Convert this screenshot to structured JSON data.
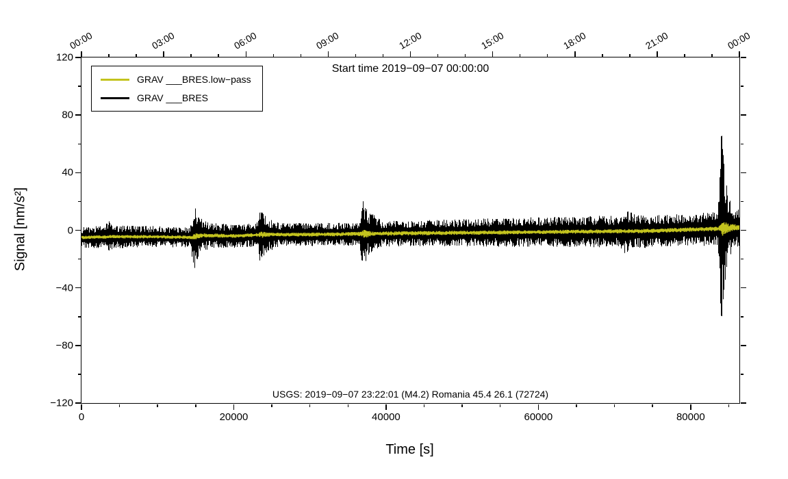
{
  "chart_data": {
    "type": "line",
    "title": "Start time 2019−09−07 00:00:00",
    "xlabel": "Time [s]",
    "ylabel": "Signal [nm/s²]",
    "annotation": "USGS: 2019−09−07 23:22:01 (M4.2) Romania 45.4 26.1 (72724)",
    "xlim": [
      0,
      86400
    ],
    "ylim": [
      -120,
      120
    ],
    "grid": false,
    "legend_position": "top-left",
    "axes": {
      "y_major": [
        -120,
        -80,
        -40,
        0,
        40,
        80,
        120
      ],
      "y_major_labels": [
        "−120",
        "−80",
        "−40",
        "0",
        "40",
        "80",
        "120"
      ],
      "y_minor_step": 20,
      "x_major": [
        0,
        20000,
        40000,
        60000,
        80000
      ],
      "x_major_labels": [
        "0",
        "20000",
        "40000",
        "60000",
        "80000"
      ],
      "x_minor_step": 5000,
      "top_major": [
        0,
        10800,
        21600,
        32400,
        43200,
        54000,
        64800,
        75600,
        86400
      ],
      "top_major_labels": [
        "00:00",
        "03:00",
        "06:00",
        "09:00",
        "12:00",
        "15:00",
        "18:00",
        "21:00",
        "00:00"
      ],
      "top_minor_step": 3600
    },
    "legend": [
      {
        "label": "GRAV ___BRES.low−pass",
        "color": "#c3c31e"
      },
      {
        "label": "GRAV ___BRES",
        "color": "#000000"
      }
    ],
    "series": [
      {
        "name": "GRAV ___BRES",
        "color": "#000000",
        "style": "noise-band",
        "envelope": [
          [
            0,
            7
          ],
          [
            3000,
            8
          ],
          [
            3600,
            11
          ],
          [
            4300,
            8
          ],
          [
            14200,
            7
          ],
          [
            14800,
            23
          ],
          [
            15400,
            14
          ],
          [
            16800,
            9
          ],
          [
            23000,
            8
          ],
          [
            23500,
            21
          ],
          [
            24200,
            13
          ],
          [
            26000,
            8
          ],
          [
            36400,
            8
          ],
          [
            36900,
            26
          ],
          [
            37600,
            16
          ],
          [
            39500,
            9
          ],
          [
            45000,
            9
          ],
          [
            55000,
            10
          ],
          [
            65000,
            11
          ],
          [
            70500,
            11
          ],
          [
            71500,
            16
          ],
          [
            72500,
            12
          ],
          [
            78000,
            11
          ],
          [
            83600,
            12
          ],
          [
            84050,
            68
          ],
          [
            84400,
            45
          ],
          [
            85000,
            22
          ],
          [
            85800,
            15
          ],
          [
            86400,
            13
          ]
        ]
      },
      {
        "name": "GRAV ___BRES.low−pass",
        "color": "#c3c31e",
        "style": "lowpass",
        "trend": [
          [
            0,
            -5
          ],
          [
            4000,
            -4.5
          ],
          [
            10000,
            -4.5
          ],
          [
            14500,
            -5
          ],
          [
            16000,
            -3.5
          ],
          [
            20000,
            -4
          ],
          [
            24000,
            -3
          ],
          [
            30000,
            -3
          ],
          [
            37000,
            -2.5
          ],
          [
            45000,
            -2
          ],
          [
            55000,
            -1.5
          ],
          [
            65000,
            -1
          ],
          [
            75000,
            -0.5
          ],
          [
            80000,
            0.5
          ],
          [
            83000,
            1
          ],
          [
            84500,
            1.5
          ],
          [
            86400,
            2
          ]
        ],
        "band": [
          [
            0,
            1.2
          ],
          [
            14500,
            1.2
          ],
          [
            14900,
            2.6
          ],
          [
            15800,
            1.4
          ],
          [
            23200,
            1.3
          ],
          [
            23700,
            2.4
          ],
          [
            24800,
            1.3
          ],
          [
            36700,
            1.5
          ],
          [
            37100,
            3.2
          ],
          [
            38200,
            1.5
          ],
          [
            60000,
            1.4
          ],
          [
            83800,
            1.6
          ],
          [
            84200,
            6
          ],
          [
            85000,
            3
          ],
          [
            86400,
            1.8
          ]
        ]
      }
    ]
  }
}
